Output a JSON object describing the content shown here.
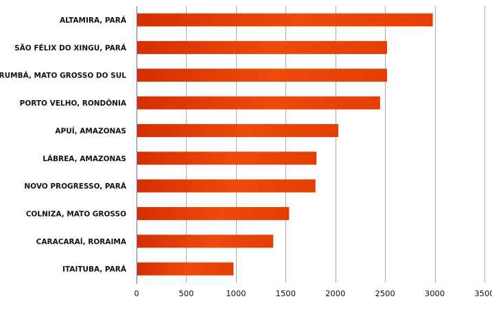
{
  "chart_data": {
    "type": "bar",
    "orientation": "horizontal",
    "title": "",
    "xlabel": "",
    "ylabel": "",
    "categories": [
      "ALTAMIRA, PARÁ",
      "SÃO FÉLIX DO XINGU, PARÁ",
      "CORUMBÁ, MATO GROSSO DO SUL",
      "PORTO VELHO, RONDÔNIA",
      "APUÍ, AMAZONAS",
      "LÁBREA, AMAZONAS",
      "NOVO PROGRESSO, PARÁ",
      "COLNIZA, MATO GROSSO",
      "CARACARAÍ, RORAIMA",
      "ITAITUBA, PARÁ"
    ],
    "values": [
      2980,
      2520,
      2520,
      2450,
      2030,
      1810,
      1800,
      1535,
      1375,
      975
    ],
    "xlim": [
      0,
      3500
    ],
    "xticks": [
      0,
      500,
      1000,
      1500,
      2000,
      2500,
      3000,
      3500
    ],
    "xtick_labels": [
      "0",
      "500",
      "1000",
      "1500",
      "2000",
      "2500",
      "3000",
      "3500"
    ],
    "grid": "vertical",
    "legend": "none",
    "colors": {
      "bar_dark": "#d42f00",
      "bar_mid": "#ee4a0c",
      "bar_light": "#e43e04",
      "grid": "#a9a9a9",
      "axis": "#5a6fb8",
      "text": "#111111"
    }
  }
}
